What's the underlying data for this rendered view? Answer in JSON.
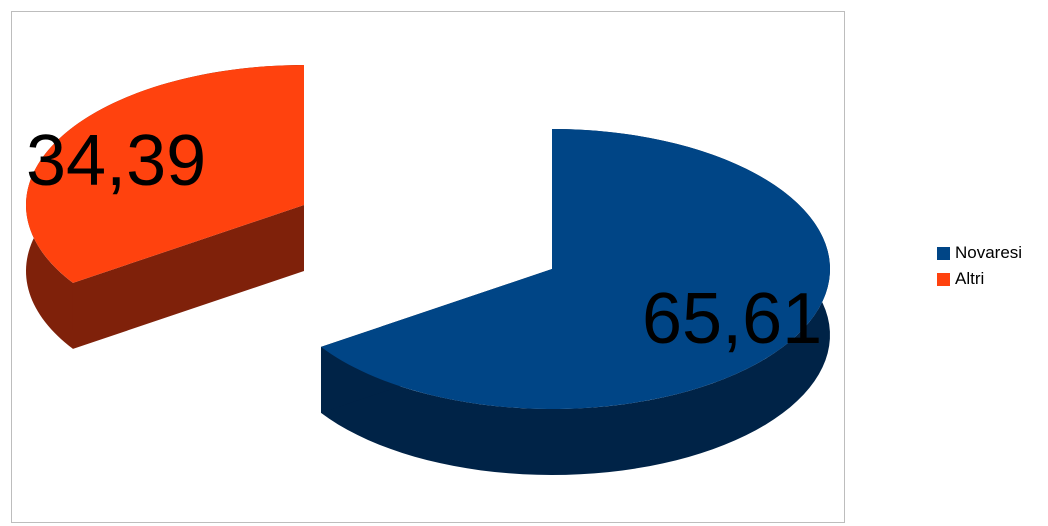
{
  "chart_data": {
    "type": "pie",
    "labels": [
      "Novaresi",
      "Altri"
    ],
    "values": [
      65.61,
      34.39
    ],
    "value_labels": [
      "65,61",
      "34,39"
    ],
    "colors": [
      "#004586",
      "#ff420e"
    ],
    "side_colors": [
      "#002347",
      "#7f210a"
    ],
    "exploded": true,
    "three_d": true,
    "legend_position": "right"
  }
}
